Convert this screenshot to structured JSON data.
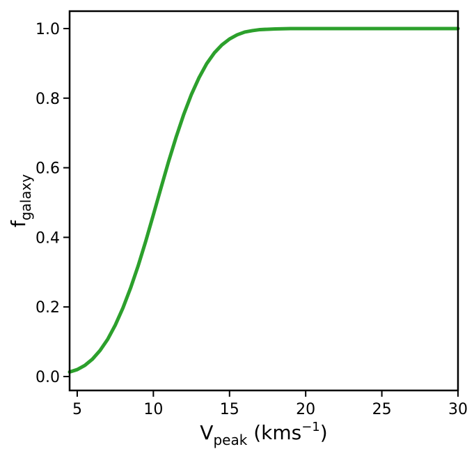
{
  "chart_data": {
    "type": "line",
    "xlabel": {
      "base": "V",
      "subscript": "peak",
      "unit_prefix": " (kms",
      "unit_superscript": "−1",
      "unit_suffix": ")"
    },
    "ylabel": {
      "base": "f",
      "subscript": "galaxy"
    },
    "xlim": [
      4.5,
      30
    ],
    "ylim": [
      -0.04,
      1.05
    ],
    "xticks": [
      5,
      10,
      15,
      20,
      25,
      30
    ],
    "xtick_labels": [
      "5",
      "10",
      "15",
      "20",
      "25",
      "30"
    ],
    "yticks": [
      0.0,
      0.2,
      0.4,
      0.6,
      0.8,
      1.0
    ],
    "ytick_labels": [
      "0.0",
      "0.2",
      "0.4",
      "0.6",
      "0.8",
      "1.0"
    ],
    "grid": false,
    "series": [
      {
        "color": "#2ca02c",
        "x": [
          4.5,
          5,
          5.5,
          6,
          6.5,
          7,
          7.5,
          8,
          8.5,
          9,
          9.5,
          10,
          10.5,
          11,
          11.5,
          12,
          12.5,
          13,
          13.5,
          14,
          14.5,
          15,
          15.5,
          16,
          16.5,
          17,
          17.5,
          18,
          19,
          20,
          21,
          22,
          25,
          30
        ],
        "y": [
          0.013,
          0.02,
          0.032,
          0.05,
          0.075,
          0.107,
          0.148,
          0.197,
          0.254,
          0.318,
          0.389,
          0.465,
          0.542,
          0.618,
          0.689,
          0.754,
          0.811,
          0.859,
          0.899,
          0.93,
          0.953,
          0.97,
          0.982,
          0.99,
          0.994,
          0.997,
          0.998,
          0.999,
          1.0,
          1.0,
          1.0,
          1.0,
          1.0,
          1.0
        ]
      }
    ]
  }
}
